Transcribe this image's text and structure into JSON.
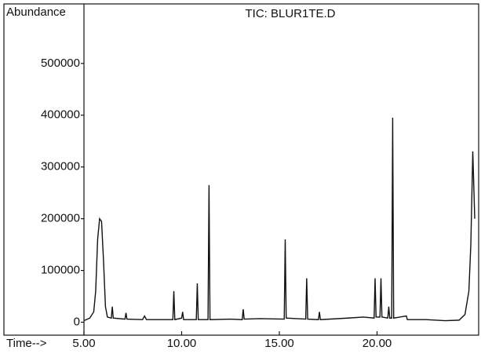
{
  "chart_data": {
    "type": "line",
    "title": "TIC: BLUR1TE.D",
    "y_label": "Abundance",
    "x_label": "Time-->",
    "x": [
      5.0,
      5.3,
      5.5,
      5.6,
      5.7,
      5.8,
      5.9,
      6.0,
      6.1,
      6.2,
      6.4,
      6.45,
      6.5,
      7.1,
      7.15,
      7.2,
      8.0,
      8.1,
      8.2,
      9.55,
      9.6,
      9.65,
      10.0,
      10.05,
      10.1,
      10.75,
      10.8,
      10.85,
      11.35,
      11.4,
      11.45,
      12.5,
      13.1,
      13.15,
      13.2,
      14.0,
      15.25,
      15.3,
      15.35,
      16.35,
      16.4,
      16.45,
      17.0,
      17.05,
      17.1,
      18.5,
      19.3,
      19.85,
      19.9,
      19.95,
      20.15,
      20.2,
      20.25,
      20.55,
      20.6,
      20.65,
      20.75,
      20.8,
      20.85,
      21.5,
      21.55,
      22.5,
      23.5,
      24.2,
      24.5,
      24.7,
      24.8,
      24.9,
      25.0
    ],
    "values": [
      3000,
      8000,
      20000,
      60000,
      160000,
      200000,
      195000,
      120000,
      30000,
      10000,
      8000,
      30000,
      8000,
      6000,
      18000,
      6000,
      5000,
      12000,
      5000,
      5000,
      60000,
      5000,
      8000,
      20000,
      5000,
      5000,
      75000,
      5000,
      5000,
      265000,
      5000,
      6000,
      5000,
      25000,
      6000,
      7000,
      6000,
      160000,
      8000,
      6000,
      85000,
      6000,
      5000,
      20000,
      5000,
      8000,
      10000,
      8000,
      85000,
      10000,
      10000,
      85000,
      10000,
      8000,
      30000,
      8000,
      8000,
      395000,
      8000,
      12000,
      5000,
      5000,
      3000,
      4000,
      15000,
      60000,
      150000,
      330000,
      200000
    ],
    "color": "#111111",
    "xlim": [
      5,
      25.2
    ],
    "ylim": [
      -25000,
      615000
    ],
    "xticks": [
      {
        "value": 5,
        "label": "5.00"
      },
      {
        "value": 10,
        "label": "10.00"
      },
      {
        "value": 15,
        "label": "15.00"
      },
      {
        "value": 20,
        "label": "20.00"
      }
    ],
    "yticks": [
      0,
      100000,
      200000,
      300000,
      400000,
      500000
    ]
  }
}
